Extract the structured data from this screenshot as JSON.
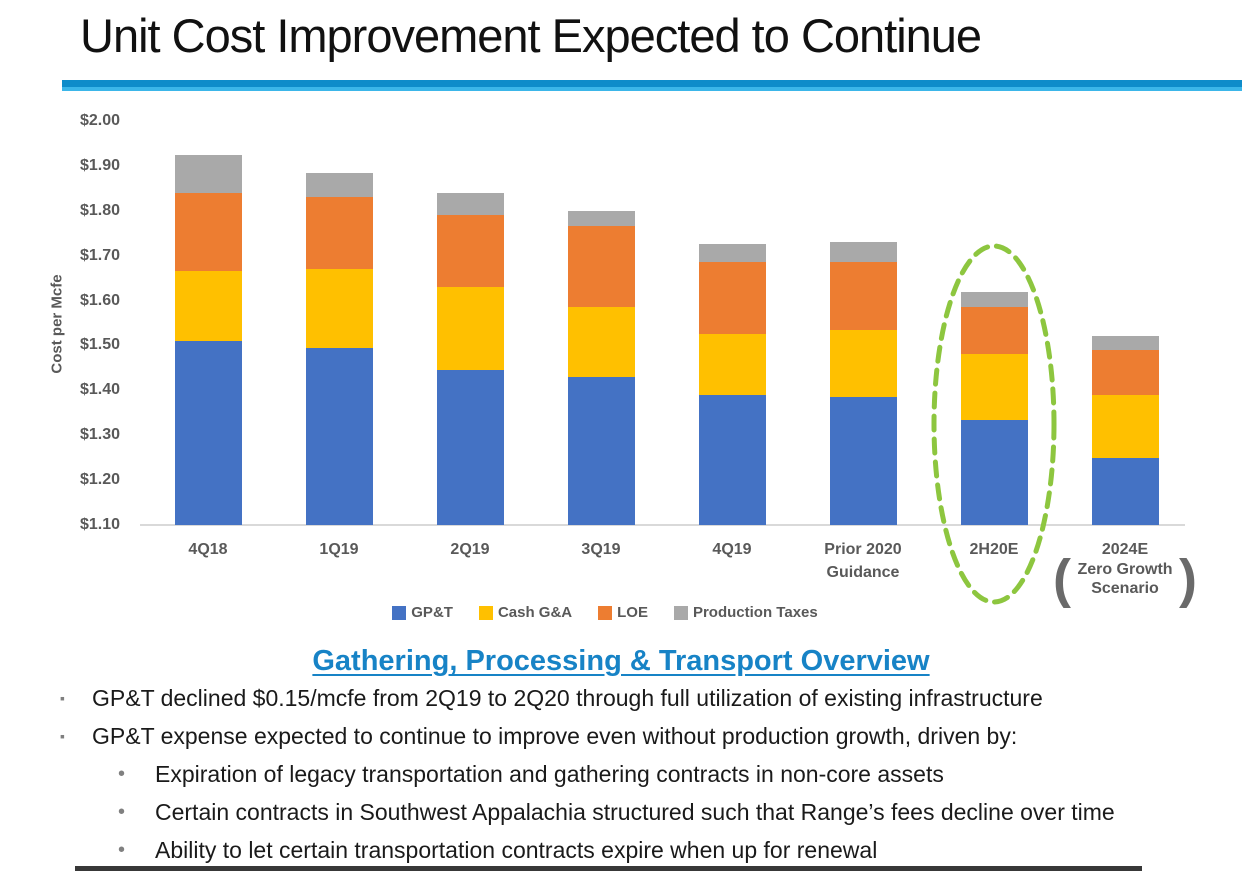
{
  "slide": {
    "title": "Unit Cost Improvement Expected to Continue",
    "accent_colors": {
      "rule_top": "#0E8CCA",
      "rule_bottom": "#3BB6E9"
    }
  },
  "icons": {
    "square_bullet": "▪",
    "dot_bullet": "•"
  },
  "chart_data": {
    "type": "bar",
    "stacked": true,
    "title": "",
    "xlabel": "",
    "ylabel": "Cost per Mcfe",
    "ylim": [
      1.1,
      2.0
    ],
    "baseline": 1.1,
    "ytick_labels": [
      "$2.00",
      "$1.90",
      "$1.80",
      "$1.70",
      "$1.60",
      "$1.50",
      "$1.40",
      "$1.30",
      "$1.20",
      "$1.10"
    ],
    "grid": false,
    "legend_position": "bottom",
    "categories": [
      [
        "4Q18"
      ],
      [
        "1Q19"
      ],
      [
        "2Q19"
      ],
      [
        "3Q19"
      ],
      [
        "4Q19"
      ],
      [
        "Prior 2020",
        "Guidance"
      ],
      [
        "2H20E"
      ],
      [
        "2024E"
      ]
    ],
    "series": [
      {
        "name": "GP&T",
        "color": "#4472C4",
        "cumulative_tops": [
          1.51,
          1.495,
          1.445,
          1.43,
          1.39,
          1.385,
          1.335,
          1.25
        ]
      },
      {
        "name": "Cash G&A",
        "color": "#FFC000",
        "cumulative_tops": [
          1.665,
          1.67,
          1.63,
          1.585,
          1.525,
          1.535,
          1.48,
          1.39
        ]
      },
      {
        "name": "LOE",
        "color": "#ED7D31",
        "cumulative_tops": [
          1.84,
          1.83,
          1.79,
          1.765,
          1.685,
          1.685,
          1.585,
          1.49
        ]
      },
      {
        "name": "Production Taxes",
        "color": "#A9A9A9",
        "cumulative_tops": [
          1.925,
          1.885,
          1.84,
          1.8,
          1.725,
          1.73,
          1.62,
          1.52
        ]
      }
    ],
    "annotations": {
      "highlight_ellipse": {
        "category": "2H20E",
        "color": "#8DC63F",
        "style": "dashed"
      },
      "parenthetical": {
        "category": "2024E",
        "open": "(",
        "close": ")",
        "lines": [
          "Zero Growth",
          "Scenario"
        ]
      }
    }
  },
  "overview": {
    "heading": "Gathering, Processing & Transport Overview",
    "heading_color": "#1783C6",
    "bullets": [
      "GP&T declined $0.15/mcfe from 2Q19 to 2Q20 through full utilization of existing infrastructure",
      "GP&T expense expected to continue to improve even without production growth, driven by:"
    ],
    "sub_bullets": [
      "Expiration of legacy transportation and gathering contracts in non-core assets",
      "Certain contracts in Southwest Appalachia structured such that Range’s fees decline over time",
      "Ability to let certain transportation contracts expire when up for renewal"
    ]
  }
}
